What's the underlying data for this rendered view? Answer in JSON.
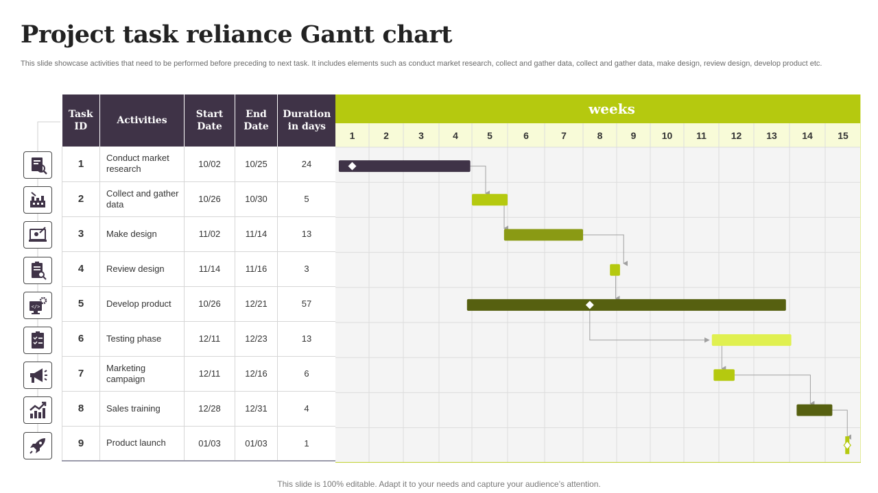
{
  "header": {
    "title": "Project task reliance Gantt chart",
    "subtitle": "This slide showcase activities that need to be performed before preceding to next task. It includes elements such as conduct market research, collect and gather data, collect and gather data, make design, review design, develop product etc."
  },
  "footer": {
    "text": "This slide is 100% editable. Adapt it to your needs and capture your audience’s attention."
  },
  "table": {
    "headers": {
      "task_id": "Task ID",
      "activities": "Activities",
      "start": "Start Date",
      "end": "End Date",
      "duration": "Duration in days"
    },
    "icons": [
      "market-research-icon",
      "data-collection-icon",
      "design-icon",
      "review-icon",
      "develop-icon",
      "testing-icon",
      "marketing-icon",
      "sales-training-icon",
      "launch-icon"
    ]
  },
  "chart_data": {
    "type": "gantt",
    "x_header": "weeks",
    "weeks": [
      "1",
      "2",
      "3",
      "4",
      "5",
      "6",
      "7",
      "8",
      "9",
      "10",
      "11",
      "12",
      "13",
      "14",
      "15"
    ],
    "tasks": [
      {
        "id": "1",
        "activity": "Conduct market research",
        "start": "10/02",
        "end": "10/25",
        "duration": "24",
        "bar_start_week": 1.1,
        "bar_end_week": 4.95,
        "color": "#3f3347",
        "milestone_week": 1.5
      },
      {
        "id": "2",
        "activity": "Collect and gather data",
        "start": "10/26",
        "end": "10/30",
        "duration": "5",
        "bar_start_week": 5.0,
        "bar_end_week": 6.0,
        "color": "#b5c90f"
      },
      {
        "id": "3",
        "activity": "Make design",
        "start": "11/02",
        "end": "11/14",
        "duration": "13",
        "bar_start_week": 5.9,
        "bar_end_week": 8.0,
        "color": "#8a9a14"
      },
      {
        "id": "4",
        "activity": "Review design",
        "start": "11/14",
        "end": "11/16",
        "duration": "3",
        "bar_start_week": 8.8,
        "bar_end_week": 9.1,
        "color": "#b5c90f"
      },
      {
        "id": "5",
        "activity": "Develop product",
        "start": "10/26",
        "end": "12/21",
        "duration": "57",
        "bar_start_week": 4.85,
        "bar_end_week": 13.9,
        "color": "#566010",
        "milestone_week": 8.2
      },
      {
        "id": "6",
        "activity": "Testing phase",
        "start": "12/11",
        "end": "12/23",
        "duration": "13",
        "bar_start_week": 11.8,
        "bar_end_week": 14.05,
        "color": "#e0f050"
      },
      {
        "id": "7",
        "activity": "Marketing campaign",
        "start": "12/11",
        "end": "12/16",
        "duration": "6",
        "bar_start_week": 11.85,
        "bar_end_week": 12.45,
        "color": "#b5c90f"
      },
      {
        "id": "8",
        "activity": "Sales training",
        "start": "12/28",
        "end": "12/31",
        "duration": "4",
        "bar_start_week": 14.2,
        "bar_end_week": 15.2,
        "color": "#566010"
      },
      {
        "id": "9",
        "activity": "Product launch",
        "start": "01/03",
        "end": "01/03",
        "duration": "1",
        "bar_start_week": 15.55,
        "bar_end_week": 15.7,
        "color": "#b5c90f",
        "milestone_week": 15.62
      }
    ],
    "dependencies": [
      [
        1,
        2
      ],
      [
        2,
        3
      ],
      [
        3,
        4
      ],
      [
        4,
        5
      ],
      [
        5,
        6
      ],
      [
        6,
        7
      ],
      [
        7,
        8
      ],
      [
        8,
        9
      ]
    ],
    "colors": {
      "header_bg": "#b5c90f",
      "week_row_bg": "#f8fbd8",
      "grid_bg": "#f4f4f4",
      "table_header_bg": "#3f3347"
    }
  }
}
